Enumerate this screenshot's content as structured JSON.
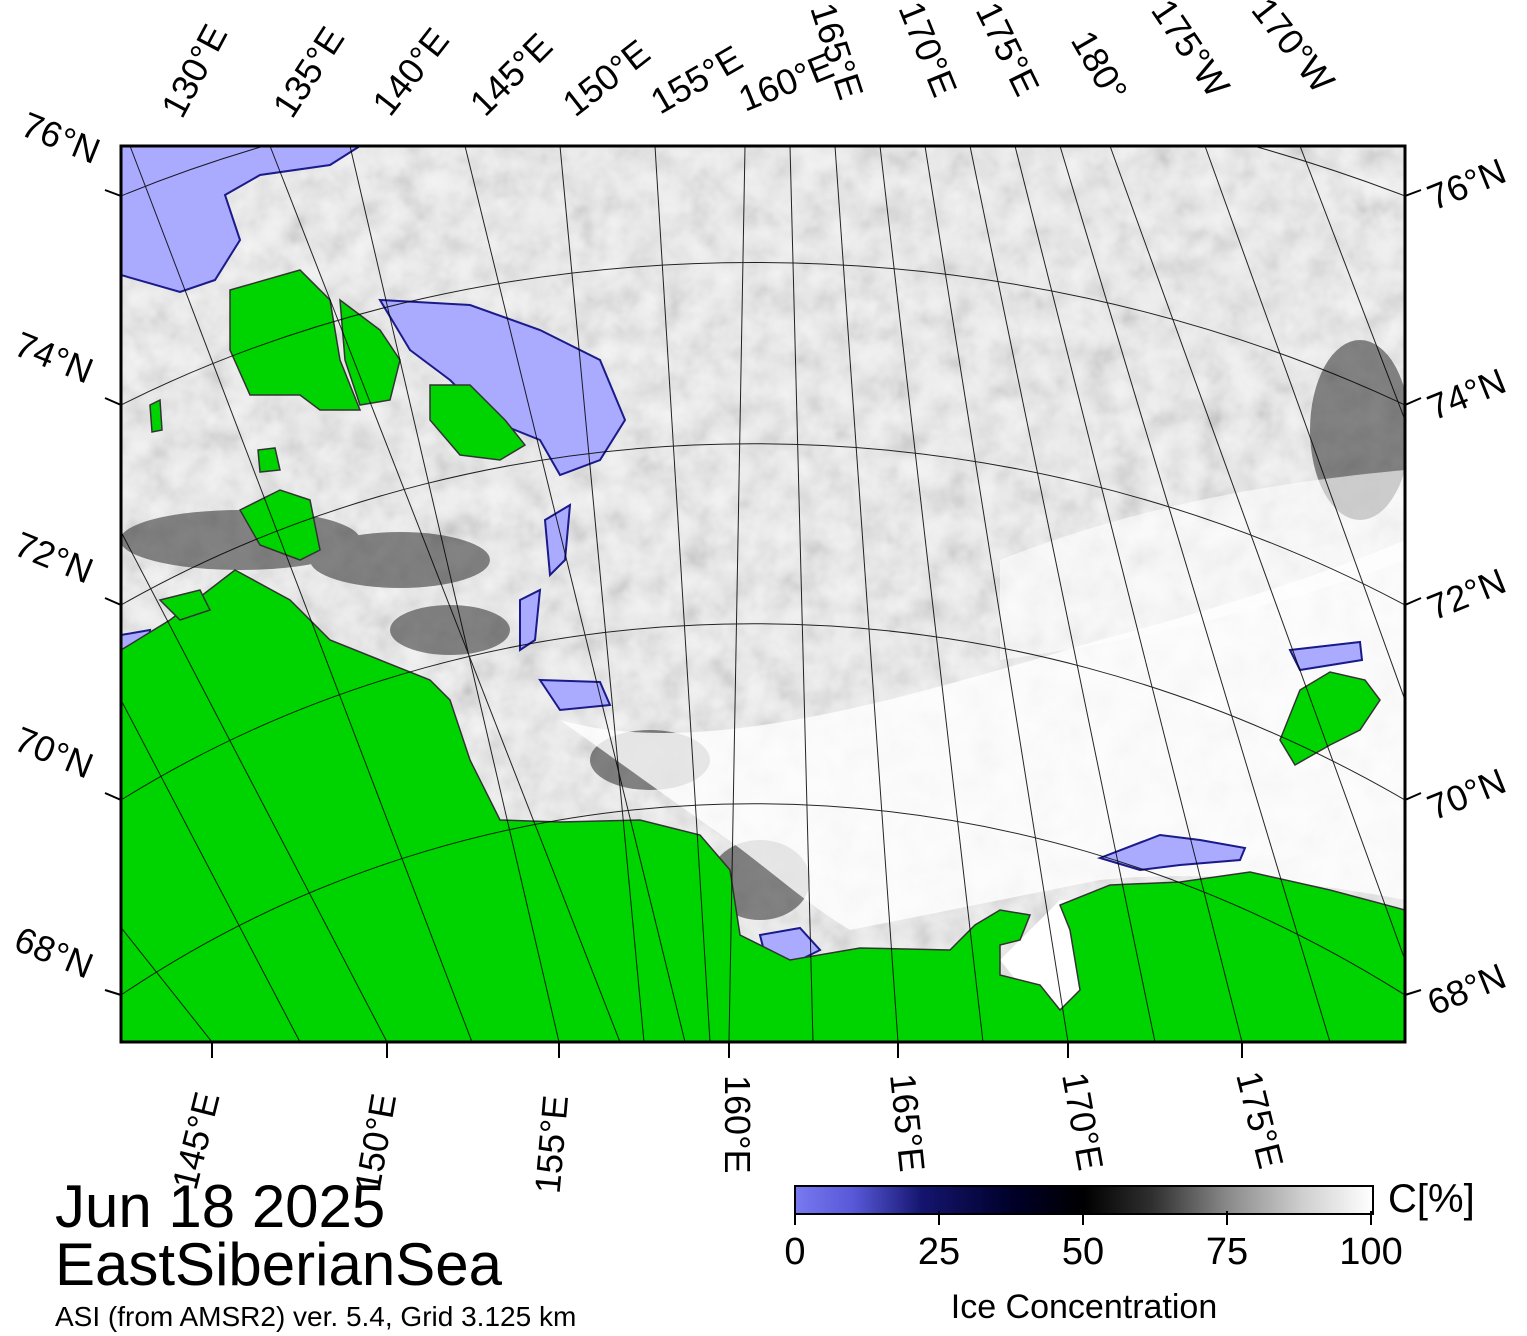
{
  "date": "Jun 18 2025",
  "region": "EastSiberianSea",
  "subtitle": "ASI (from AMSR2) ver. 5.4,  Grid 3.125 km",
  "colorbar": {
    "title": "Ice Concentration",
    "unit": "C[%]",
    "ticks": [
      "0",
      "25",
      "50",
      "75",
      "100"
    ]
  },
  "lat_labels": [
    "76°N",
    "74°N",
    "72°N",
    "70°N",
    "68°N"
  ],
  "top_lon_labels": [
    "130°E",
    "135°E",
    "140°E",
    "145°E",
    "150°E",
    "155°E",
    "160°E",
    "165°E",
    "170°E",
    "175°E",
    "180°",
    "175°W",
    "170°W"
  ],
  "bottom_lon_labels": [
    "145°E",
    "150°E",
    "155°E",
    "160°E",
    "165°E",
    "170°E",
    "175°E"
  ],
  "colors": {
    "land": "#00d400",
    "low_ice": "#aaaaff",
    "open_water": "#ffffff",
    "coast": "#555555"
  }
}
